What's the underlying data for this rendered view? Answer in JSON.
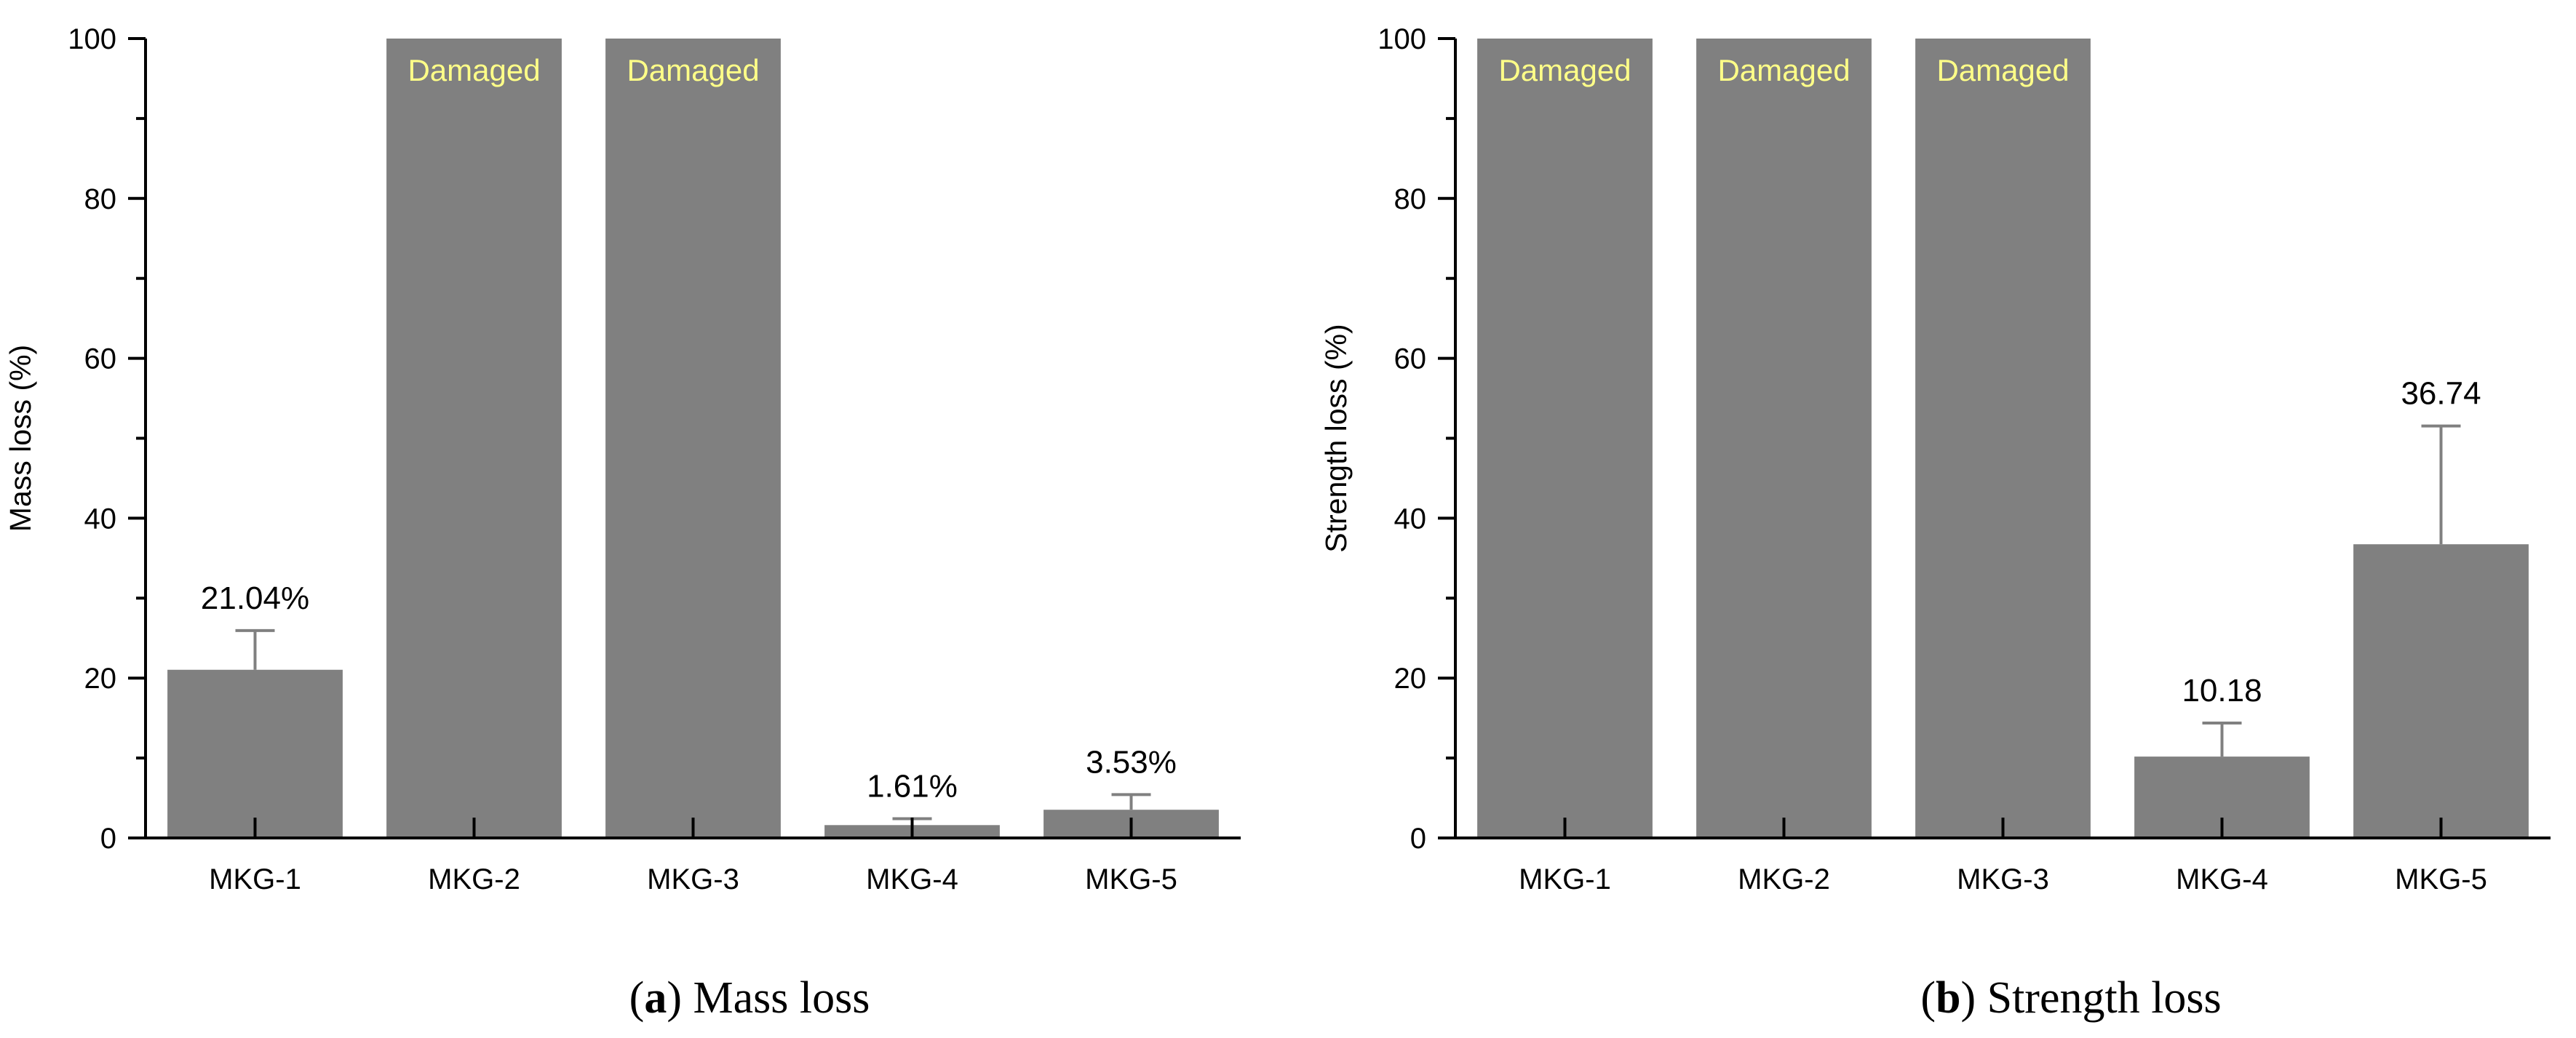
{
  "chart_data": [
    {
      "type": "bar",
      "panel": "a",
      "caption_letter": "a",
      "caption_text": "Mass loss",
      "title": "",
      "xlabel": "",
      "ylabel": "Mass loss (%)",
      "ylim": [
        0,
        100
      ],
      "yticks": [
        "0",
        "20",
        "40",
        "60",
        "80",
        "100"
      ],
      "categories": [
        "MKG-1",
        "MKG-2",
        "MKG-3",
        "MKG-4",
        "MKG-5"
      ],
      "values": [
        21.04,
        100,
        100,
        1.61,
        3.53
      ],
      "errors": [
        4.9,
        null,
        null,
        0.8,
        1.9
      ],
      "labels": [
        "21.04%",
        "Damaged",
        "Damaged",
        "1.61%",
        "3.53%"
      ],
      "damaged": [
        false,
        true,
        true,
        false,
        false
      ],
      "bar_color": "#808080",
      "error_color": "#808080",
      "damaged_color": "#ffff88"
    },
    {
      "type": "bar",
      "panel": "b",
      "caption_letter": "b",
      "caption_text": "Strength loss",
      "title": "",
      "xlabel": "",
      "ylabel": "Strength loss (%)",
      "ylim": [
        0,
        100
      ],
      "yticks": [
        "0",
        "20",
        "40",
        "60",
        "80",
        "100"
      ],
      "categories": [
        "MKG-1",
        "MKG-2",
        "MKG-3",
        "MKG-4",
        "MKG-5"
      ],
      "values": [
        100,
        100,
        100,
        10.18,
        36.74
      ],
      "errors": [
        null,
        null,
        null,
        4.2,
        14.8
      ],
      "labels": [
        "Damaged",
        "Damaged",
        "Damaged",
        "10.18",
        "36.74"
      ],
      "damaged": [
        true,
        true,
        true,
        false,
        false
      ],
      "bar_color": "#808080",
      "error_color": "#808080",
      "damaged_color": "#ffff88"
    }
  ]
}
